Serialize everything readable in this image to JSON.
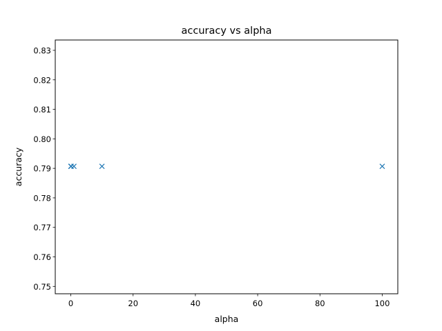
{
  "chart_data": {
    "type": "scatter",
    "title": "accuracy vs alpha",
    "xlabel": "alpha",
    "ylabel": "accuracy",
    "xlim": [
      -5,
      105
    ],
    "ylim": [
      0.7475,
      0.8335
    ],
    "xticks": [
      0,
      20,
      40,
      60,
      80,
      100
    ],
    "xtick_labels": [
      "0",
      "20",
      "40",
      "60",
      "80",
      "100"
    ],
    "yticks": [
      0.75,
      0.76,
      0.77,
      0.78,
      0.79,
      0.8,
      0.81,
      0.82,
      0.83
    ],
    "ytick_labels": [
      "0.75",
      "0.76",
      "0.77",
      "0.78",
      "0.79",
      "0.80",
      "0.81",
      "0.82",
      "0.83"
    ],
    "grid": false,
    "marker": "x",
    "marker_color": "#1f77b4",
    "series": [
      {
        "x": [
          0.01,
          0.1,
          1,
          10,
          100
        ],
        "y": [
          0.7907,
          0.7907,
          0.7907,
          0.7907,
          0.7907
        ]
      }
    ]
  }
}
